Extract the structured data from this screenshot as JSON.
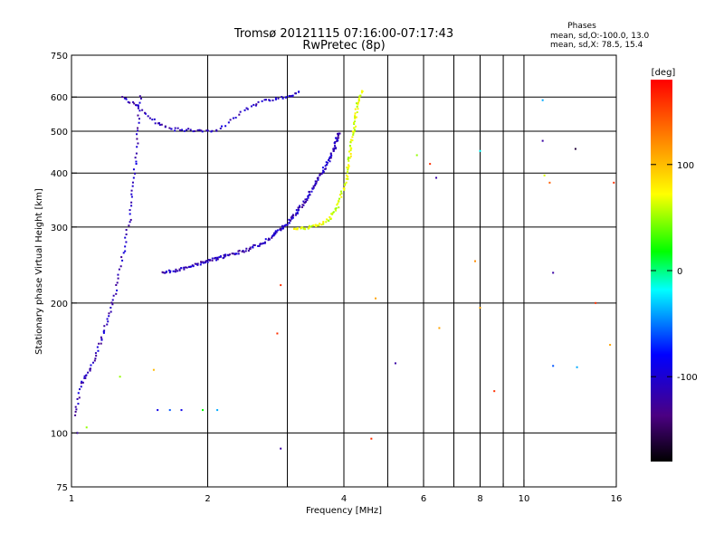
{
  "title_line1": "Tromsø 20121115 07:16:00-07:17:43",
  "title_line2": "RwPretec (8p)",
  "stats": {
    "heading": "Phases",
    "line1": "mean, sd,O:-100.0, 13.0",
    "line2": "mean, sd,X:  78.5, 15.4"
  },
  "colorbar": {
    "unit": "[deg]",
    "ticks": [
      100,
      0,
      -100
    ],
    "range": [
      -180,
      180
    ]
  },
  "chart_data": {
    "type": "scatter",
    "xlabel": "Frequency [MHz]",
    "ylabel": "Stationary phase Virtual Height [km]",
    "xscale": "log",
    "yscale": "log",
    "xlim": [
      1,
      16
    ],
    "ylim": [
      75,
      750
    ],
    "xticks": [
      1,
      2,
      4,
      6,
      8,
      10,
      16
    ],
    "xgrid": [
      1,
      2,
      3,
      4,
      5,
      6,
      7,
      8,
      9,
      10,
      16
    ],
    "xgrid_major": [
      2,
      4,
      6,
      8,
      10
    ],
    "yticks": [
      75,
      100,
      200,
      300,
      400,
      500,
      600,
      750
    ],
    "ygrid": [
      100,
      200,
      300,
      400,
      500,
      600
    ],
    "grid": true,
    "traces": [
      {
        "name": "",
        "phase_deg": -110,
        "points": [
          [
            1.58,
            235
          ],
          [
            1.7,
            238
          ],
          [
            1.8,
            242
          ],
          [
            1.9,
            246
          ],
          [
            2.0,
            250
          ],
          [
            2.1,
            254
          ],
          [
            2.2,
            258
          ],
          [
            2.35,
            262
          ],
          [
            2.5,
            268
          ],
          [
            2.65,
            276
          ],
          [
            2.8,
            288
          ],
          [
            2.9,
            296
          ],
          [
            3.0,
            305
          ],
          [
            3.1,
            318
          ],
          [
            3.2,
            332
          ],
          [
            3.3,
            348
          ],
          [
            3.4,
            366
          ],
          [
            3.5,
            385
          ],
          [
            3.6,
            405
          ],
          [
            3.7,
            428
          ],
          [
            3.8,
            452
          ],
          [
            3.85,
            475
          ],
          [
            3.9,
            500
          ]
        ]
      },
      {
        "name": "",
        "phase_deg": 60,
        "points": [
          [
            3.1,
            296
          ],
          [
            3.3,
            298
          ],
          [
            3.5,
            303
          ],
          [
            3.7,
            312
          ],
          [
            3.85,
            330
          ],
          [
            3.95,
            355
          ],
          [
            4.05,
            385
          ],
          [
            4.1,
            420
          ],
          [
            4.15,
            460
          ],
          [
            4.2,
            500
          ],
          [
            4.25,
            540
          ],
          [
            4.3,
            590
          ],
          [
            4.4,
            620
          ]
        ]
      },
      {
        "name": "",
        "phase_deg": -110,
        "points": [
          [
            1.3,
            600
          ],
          [
            1.4,
            570
          ],
          [
            1.55,
            520
          ],
          [
            1.7,
            505
          ],
          [
            1.9,
            502
          ],
          [
            2.1,
            500
          ],
          [
            2.4,
            560
          ],
          [
            2.7,
            590
          ],
          [
            3.0,
            600
          ],
          [
            3.2,
            615
          ]
        ]
      },
      {
        "name": "",
        "phase_deg": -110,
        "points": [
          [
            1.02,
            110
          ],
          [
            1.05,
            130
          ],
          [
            1.1,
            140
          ],
          [
            1.15,
            160
          ],
          [
            1.2,
            180
          ],
          [
            1.25,
            210
          ],
          [
            1.3,
            260
          ],
          [
            1.35,
            320
          ],
          [
            1.38,
            400
          ],
          [
            1.4,
            500
          ],
          [
            1.42,
            620
          ]
        ]
      }
    ],
    "scatter_outliers": [
      {
        "x": 1.03,
        "y": 100,
        "phase_deg": -120
      },
      {
        "x": 1.08,
        "y": 103,
        "phase_deg": 40
      },
      {
        "x": 1.55,
        "y": 113,
        "phase_deg": -90
      },
      {
        "x": 1.65,
        "y": 113,
        "phase_deg": -60
      },
      {
        "x": 1.75,
        "y": 113,
        "phase_deg": -90
      },
      {
        "x": 1.95,
        "y": 113,
        "phase_deg": 0
      },
      {
        "x": 2.1,
        "y": 113,
        "phase_deg": -40
      },
      {
        "x": 1.28,
        "y": 135,
        "phase_deg": 40
      },
      {
        "x": 1.52,
        "y": 140,
        "phase_deg": 100
      },
      {
        "x": 2.85,
        "y": 170,
        "phase_deg": 160
      },
      {
        "x": 2.9,
        "y": 220,
        "phase_deg": 160
      },
      {
        "x": 2.9,
        "y": 92,
        "phase_deg": -120
      },
      {
        "x": 4.6,
        "y": 97,
        "phase_deg": 160
      },
      {
        "x": 4.7,
        "y": 205,
        "phase_deg": 110
      },
      {
        "x": 5.2,
        "y": 145,
        "phase_deg": -120
      },
      {
        "x": 5.8,
        "y": 440,
        "phase_deg": 40
      },
      {
        "x": 6.2,
        "y": 420,
        "phase_deg": 160
      },
      {
        "x": 6.4,
        "y": 390,
        "phase_deg": -120
      },
      {
        "x": 6.5,
        "y": 175,
        "phase_deg": 110
      },
      {
        "x": 7.8,
        "y": 250,
        "phase_deg": 120
      },
      {
        "x": 8.0,
        "y": 195,
        "phase_deg": 110
      },
      {
        "x": 8.0,
        "y": 450,
        "phase_deg": -20
      },
      {
        "x": 8.6,
        "y": 125,
        "phase_deg": 160
      },
      {
        "x": 11.0,
        "y": 590,
        "phase_deg": -40
      },
      {
        "x": 11.0,
        "y": 475,
        "phase_deg": -120
      },
      {
        "x": 11.1,
        "y": 395,
        "phase_deg": 60
      },
      {
        "x": 11.4,
        "y": 380,
        "phase_deg": 140
      },
      {
        "x": 11.6,
        "y": 235,
        "phase_deg": -120
      },
      {
        "x": 11.6,
        "y": 143,
        "phase_deg": -60
      },
      {
        "x": 13.0,
        "y": 455,
        "phase_deg": -160
      },
      {
        "x": 13.1,
        "y": 142,
        "phase_deg": -40
      },
      {
        "x": 14.4,
        "y": 200,
        "phase_deg": 160
      },
      {
        "x": 15.5,
        "y": 160,
        "phase_deg": 110
      },
      {
        "x": 15.8,
        "y": 380,
        "phase_deg": 160
      }
    ]
  }
}
